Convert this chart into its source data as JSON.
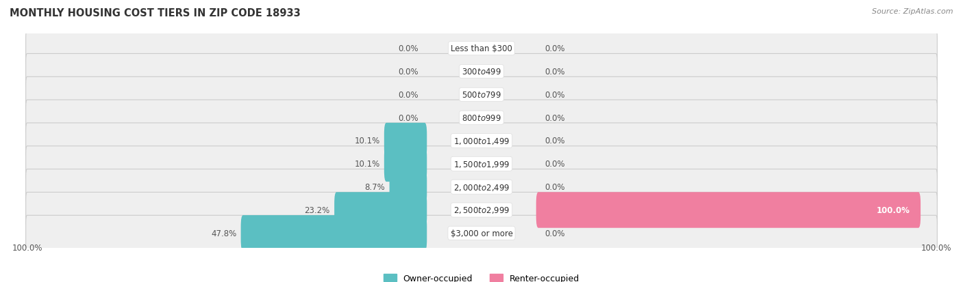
{
  "title": "Monthly Housing Cost Tiers in Zip Code 18933",
  "title_display": "MONTHLY HOUSING COST TIERS IN ZIP CODE 18933",
  "source": "Source: ZipAtlas.com",
  "categories": [
    "Less than $300",
    "$300 to $499",
    "$500 to $799",
    "$800 to $999",
    "$1,000 to $1,499",
    "$1,500 to $1,999",
    "$2,000 to $2,499",
    "$2,500 to $2,999",
    "$3,000 or more"
  ],
  "owner_values": [
    0.0,
    0.0,
    0.0,
    0.0,
    10.1,
    10.1,
    8.7,
    23.2,
    47.8
  ],
  "renter_values": [
    0.0,
    0.0,
    0.0,
    0.0,
    0.0,
    0.0,
    0.0,
    100.0,
    0.0
  ],
  "owner_color": "#5bbfc2",
  "renter_color": "#f07fa0",
  "row_bg_color": "#efefef",
  "axis_max": 100.0,
  "bar_height": 0.55,
  "title_fontsize": 10.5,
  "label_fontsize": 8.5,
  "value_fontsize": 8.5,
  "tick_fontsize": 8.5,
  "legend_fontsize": 9,
  "source_fontsize": 8
}
